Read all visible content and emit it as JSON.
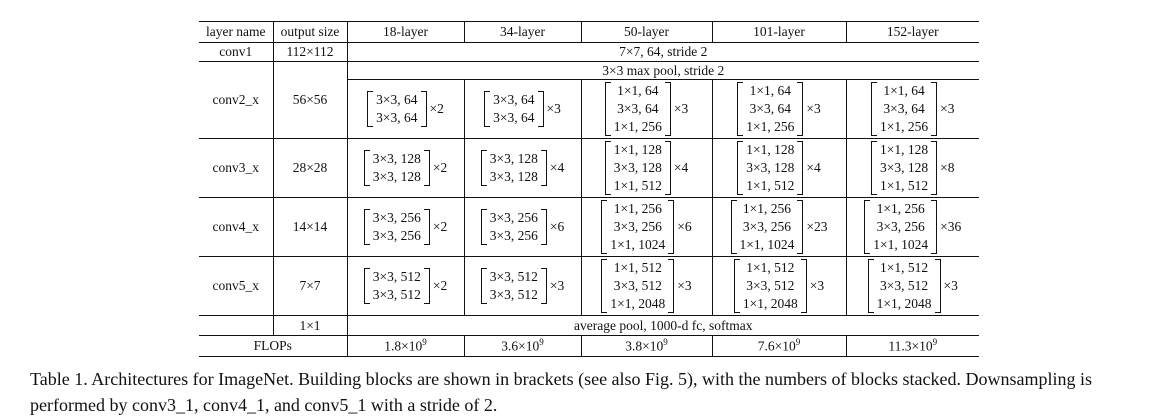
{
  "headers": [
    "layer name",
    "output size",
    "18-layer",
    "34-layer",
    "50-layer",
    "101-layer",
    "152-layer"
  ],
  "conv1": {
    "name": "conv1",
    "output": "112×112",
    "spec": "7×7, 64, stride 2"
  },
  "pool": {
    "spec": "3×3 max pool, stride 2"
  },
  "stages": [
    {
      "name": "conv2_x",
      "output": "56×56",
      "blocks": [
        {
          "lines": [
            "3×3, 64",
            "3×3, 64"
          ],
          "mult": "×2"
        },
        {
          "lines": [
            "3×3, 64",
            "3×3, 64"
          ],
          "mult": "×3"
        },
        {
          "lines": [
            "1×1, 64",
            "3×3, 64",
            "1×1, 256"
          ],
          "mult": "×3"
        },
        {
          "lines": [
            "1×1, 64",
            "3×3, 64",
            "1×1, 256"
          ],
          "mult": "×3"
        },
        {
          "lines": [
            "1×1, 64",
            "3×3, 64",
            "1×1, 256"
          ],
          "mult": "×3"
        }
      ]
    },
    {
      "name": "conv3_x",
      "output": "28×28",
      "blocks": [
        {
          "lines": [
            "3×3, 128",
            "3×3, 128"
          ],
          "mult": "×2"
        },
        {
          "lines": [
            "3×3, 128",
            "3×3, 128"
          ],
          "mult": "×4"
        },
        {
          "lines": [
            "1×1, 128",
            "3×3, 128",
            "1×1, 512"
          ],
          "mult": "×4"
        },
        {
          "lines": [
            "1×1, 128",
            "3×3, 128",
            "1×1, 512"
          ],
          "mult": "×4"
        },
        {
          "lines": [
            "1×1, 128",
            "3×3, 128",
            "1×1, 512"
          ],
          "mult": "×8"
        }
      ]
    },
    {
      "name": "conv4_x",
      "output": "14×14",
      "blocks": [
        {
          "lines": [
            "3×3, 256",
            "3×3, 256"
          ],
          "mult": "×2"
        },
        {
          "lines": [
            "3×3, 256",
            "3×3, 256"
          ],
          "mult": "×6"
        },
        {
          "lines": [
            "1×1, 256",
            "3×3, 256",
            "1×1, 1024"
          ],
          "mult": "×6"
        },
        {
          "lines": [
            "1×1, 256",
            "3×3, 256",
            "1×1, 1024"
          ],
          "mult": "×23"
        },
        {
          "lines": [
            "1×1, 256",
            "3×3, 256",
            "1×1, 1024"
          ],
          "mult": "×36"
        }
      ]
    },
    {
      "name": "conv5_x",
      "output": "7×7",
      "blocks": [
        {
          "lines": [
            "3×3, 512",
            "3×3, 512"
          ],
          "mult": "×2"
        },
        {
          "lines": [
            "3×3, 512",
            "3×3, 512"
          ],
          "mult": "×3"
        },
        {
          "lines": [
            "1×1, 512",
            "3×3, 512",
            "1×1, 2048"
          ],
          "mult": "×3"
        },
        {
          "lines": [
            "1×1, 512",
            "3×3, 512",
            "1×1, 2048"
          ],
          "mult": "×3"
        },
        {
          "lines": [
            "1×1, 512",
            "3×3, 512",
            "1×1, 2048"
          ],
          "mult": "×3"
        }
      ]
    }
  ],
  "final": {
    "output": "1×1",
    "spec": "average pool, 1000-d fc, softmax"
  },
  "flops": {
    "label": "FLOPs",
    "values": [
      {
        "mantissa": "1.8×10",
        "exp": "9"
      },
      {
        "mantissa": "3.6×10",
        "exp": "9"
      },
      {
        "mantissa": "3.8×10",
        "exp": "9"
      },
      {
        "mantissa": "7.6×10",
        "exp": "9"
      },
      {
        "mantissa": "11.3×10",
        "exp": "9"
      }
    ]
  },
  "caption": "Table 1. Architectures for ImageNet. Building blocks are shown in brackets (see also Fig. 5), with the numbers of blocks stacked. Downsampling is performed by conv3_1, conv4_1, and conv5_1 with a stride of 2."
}
